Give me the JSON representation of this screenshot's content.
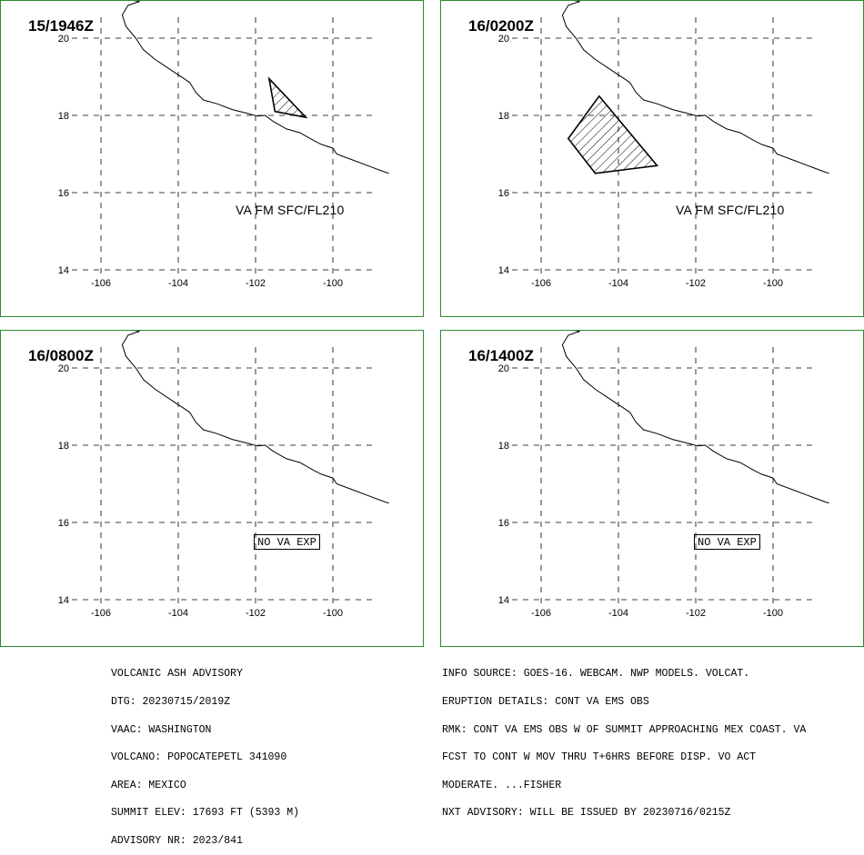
{
  "panels": [
    {
      "time_label": "15/1946Z",
      "ash_text": "VA FM SFC/FL210",
      "no_va_text": "",
      "ash_polygon": [
        [
          -101.65,
          18.95
        ],
        [
          -100.7,
          17.95
        ],
        [
          -101.5,
          18.1
        ]
      ]
    },
    {
      "time_label": "16/0200Z",
      "ash_text": "VA FM SFC/FL210",
      "no_va_text": "",
      "ash_polygon": [
        [
          -104.5,
          18.5
        ],
        [
          -103.0,
          16.7
        ],
        [
          -104.6,
          16.5
        ],
        [
          -105.3,
          17.4
        ]
      ]
    },
    {
      "time_label": "16/0800Z",
      "ash_text": "",
      "no_va_text": "NO VA EXP",
      "ash_polygon": []
    },
    {
      "time_label": "16/1400Z",
      "ash_text": "",
      "no_va_text": "NO VA EXP",
      "ash_polygon": []
    }
  ],
  "map_grid": {
    "lon_ticks": [
      "-106",
      "-104",
      "-102",
      "-100"
    ],
    "lat_ticks": [
      "20",
      "18",
      "16",
      "14"
    ]
  },
  "advisory_left": [
    "VOLCANIC ASH ADVISORY",
    "DTG: 20230715/2019Z",
    "VAAC: WASHINGTON",
    "VOLCANO: POPOCATEPETL 341090",
    "AREA: MEXICO",
    "SUMMIT ELEV: 17693 FT (5393 M)",
    "ADVISORY NR: 2023/841"
  ],
  "advisory_right": [
    "INFO SOURCE: GOES-16. WEBCAM. NWP MODELS. VOLCAT.",
    "ERUPTION DETAILS: CONT VA EMS OBS",
    "RMK: CONT VA EMS OBS W OF SUMMIT APPROACHING MEX COAST. VA",
    "FCST TO CONT W MOV THRU T+6HRS BEFORE DISP. VO ACT",
    "MODERATE. ...FISHER",
    "NXT ADVISORY: WILL BE ISSUED BY 20230716/0215Z"
  ],
  "colors": {
    "panel_border": "#2e8b2e",
    "grid": "#000000",
    "coast": "#000000"
  }
}
